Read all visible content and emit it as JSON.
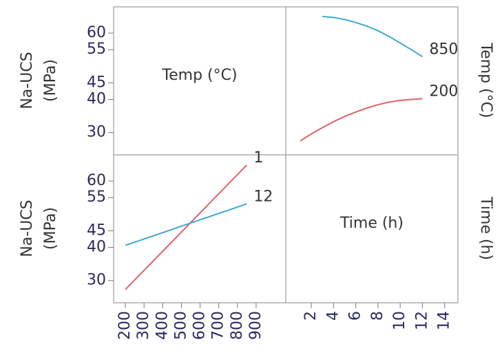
{
  "chart_data": [
    {
      "type": "line",
      "x_label": "Time (h)",
      "legend_title": "Temp (°C)",
      "y_label": [
        "Na-UCS",
        "(MPa)"
      ],
      "x": [
        1,
        2,
        3,
        4,
        5,
        6,
        7,
        8,
        9,
        10,
        11,
        12
      ],
      "xlim": [
        -0.3,
        15.2
      ],
      "xticks": [
        2,
        4,
        6,
        8,
        10,
        12,
        14
      ],
      "ylim": [
        23.3,
        67.9
      ],
      "yticks": [
        30,
        40,
        45,
        55,
        60
      ],
      "series": [
        {
          "name": "850",
          "color": "#3fa8d0",
          "values": [
            null,
            null,
            65.0,
            64.7,
            64.1,
            63.2,
            62.1,
            60.7,
            59.0,
            57.0,
            55.0,
            52.9
          ]
        },
        {
          "name": "200",
          "color": "#e0606a",
          "values": [
            27.5,
            29.6,
            31.5,
            33.3,
            34.9,
            36.2,
            37.4,
            38.4,
            39.2,
            39.7,
            40.0,
            40.2
          ]
        }
      ]
    },
    {
      "type": "line",
      "x_label": "Temp (°C)",
      "legend_title": "Time (h)",
      "y_label": [
        "Na-UCS",
        "(MPa)"
      ],
      "x": [
        200,
        850
      ],
      "xlim": [
        137,
        1059
      ],
      "xticks": [
        200,
        300,
        400,
        500,
        600,
        700,
        800,
        900
      ],
      "ylim": [
        23.3,
        67.9
      ],
      "yticks": [
        30,
        40,
        45,
        55,
        60
      ],
      "series": [
        {
          "name": "1",
          "color": "#e0606a",
          "values": [
            27.3,
            64.8
          ]
        },
        {
          "name": "12",
          "color": "#3fa8d0",
          "values": [
            40.6,
            53.1
          ]
        }
      ]
    }
  ]
}
